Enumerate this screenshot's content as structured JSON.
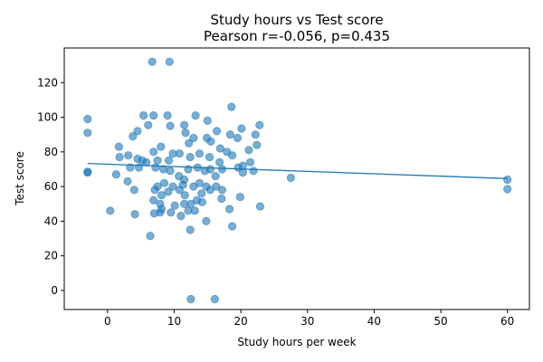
{
  "chart_data": {
    "type": "scatter",
    "title": "Study hours vs Test score",
    "subtitle": "Pearson r=-0.056, p=0.435",
    "xlabel": "Study hours per week",
    "ylabel": "Test score",
    "xlim": [
      -6.5,
      63.3
    ],
    "ylim": [
      -11,
      140
    ],
    "xticks": [
      0,
      10,
      20,
      30,
      40,
      50,
      60
    ],
    "yticks": [
      0,
      20,
      40,
      60,
      80,
      100,
      120
    ],
    "grid": false,
    "colors": {
      "points": "#1f77b4",
      "fit_line": "#1f77b4"
    },
    "fit_line": {
      "x": [
        -3,
        60
      ],
      "y": [
        73.3,
        64.6
      ]
    },
    "points": [
      [
        6.7,
        132
      ],
      [
        9.3,
        132
      ],
      [
        18.6,
        106
      ],
      [
        -3,
        99
      ],
      [
        6.9,
        101
      ],
      [
        5.4,
        101
      ],
      [
        9.0,
        101
      ],
      [
        13.2,
        101
      ],
      [
        15.0,
        98
      ],
      [
        -3,
        91
      ],
      [
        22.8,
        95.5
      ],
      [
        20.1,
        93.5
      ],
      [
        11.5,
        95.5
      ],
      [
        9.4,
        95
      ],
      [
        6.1,
        95.5
      ],
      [
        4.5,
        92
      ],
      [
        16.4,
        92
      ],
      [
        18.4,
        90
      ],
      [
        22.2,
        90
      ],
      [
        1.7,
        83
      ],
      [
        3.8,
        89
      ],
      [
        8.0,
        83
      ],
      [
        11.7,
        91
      ],
      [
        12.9,
        88
      ],
      [
        14.9,
        88
      ],
      [
        19.5,
        88
      ],
      [
        21.2,
        81
      ],
      [
        22.4,
        84
      ],
      [
        12.2,
        85
      ],
      [
        15.5,
        86
      ],
      [
        1.8,
        77
      ],
      [
        3.1,
        78
      ],
      [
        4.5,
        76
      ],
      [
        5.2,
        75
      ],
      [
        5.8,
        74
      ],
      [
        7.5,
        75
      ],
      [
        9.2,
        75
      ],
      [
        10.8,
        79
      ],
      [
        12.4,
        77
      ],
      [
        13.8,
        79
      ],
      [
        15.3,
        77
      ],
      [
        16.8,
        74
      ],
      [
        18.7,
        78
      ],
      [
        20.3,
        72
      ],
      [
        21.4,
        74
      ],
      [
        17.9,
        80
      ],
      [
        16.9,
        82
      ],
      [
        6.9,
        80
      ],
      [
        9.8,
        79
      ],
      [
        -3,
        68
      ],
      [
        -3,
        68.5
      ],
      [
        1.3,
        67
      ],
      [
        3.4,
        71
      ],
      [
        4.7,
        71
      ],
      [
        7.2,
        71
      ],
      [
        8.4,
        70
      ],
      [
        9.4,
        69
      ],
      [
        10.7,
        66
      ],
      [
        11.5,
        64
      ],
      [
        12.1,
        70
      ],
      [
        13.5,
        71
      ],
      [
        14.6,
        69
      ],
      [
        15.4,
        70
      ],
      [
        16.2,
        66
      ],
      [
        17.2,
        70
      ],
      [
        19.6,
        71
      ],
      [
        20.3,
        68
      ],
      [
        21.9,
        69
      ],
      [
        27.5,
        65
      ],
      [
        3.0,
        63
      ],
      [
        7.5,
        60
      ],
      [
        8.5,
        62
      ],
      [
        9.8,
        60
      ],
      [
        10.8,
        58
      ],
      [
        11.3,
        61
      ],
      [
        12.9,
        60
      ],
      [
        13.8,
        62
      ],
      [
        14.8,
        60
      ],
      [
        15.4,
        58
      ],
      [
        16.3,
        60
      ],
      [
        17.2,
        58
      ],
      [
        9.1,
        57
      ],
      [
        8.1,
        55
      ],
      [
        7.1,
        58
      ],
      [
        11.6,
        55
      ],
      [
        14.1,
        56
      ],
      [
        4.0,
        58
      ],
      [
        6.9,
        52
      ],
      [
        7.9,
        50
      ],
      [
        10.1,
        49
      ],
      [
        11.5,
        50
      ],
      [
        12.5,
        50
      ],
      [
        13.4,
        52
      ],
      [
        14.2,
        51
      ],
      [
        17.1,
        53
      ],
      [
        19.9,
        54
      ],
      [
        22.9,
        48.5
      ],
      [
        18.3,
        47
      ],
      [
        13.1,
        46
      ],
      [
        12.1,
        46
      ],
      [
        7.9,
        45
      ],
      [
        7.0,
        44.5
      ],
      [
        8.1,
        47
      ],
      [
        9.5,
        45
      ],
      [
        4.1,
        44
      ],
      [
        0.4,
        46
      ],
      [
        11.0,
        43
      ],
      [
        14.8,
        40
      ],
      [
        18.7,
        37
      ],
      [
        12.4,
        35
      ],
      [
        6.4,
        31.5
      ],
      [
        12.5,
        -5
      ],
      [
        16.1,
        -5
      ],
      [
        60,
        64
      ],
      [
        60,
        58.5
      ]
    ]
  }
}
